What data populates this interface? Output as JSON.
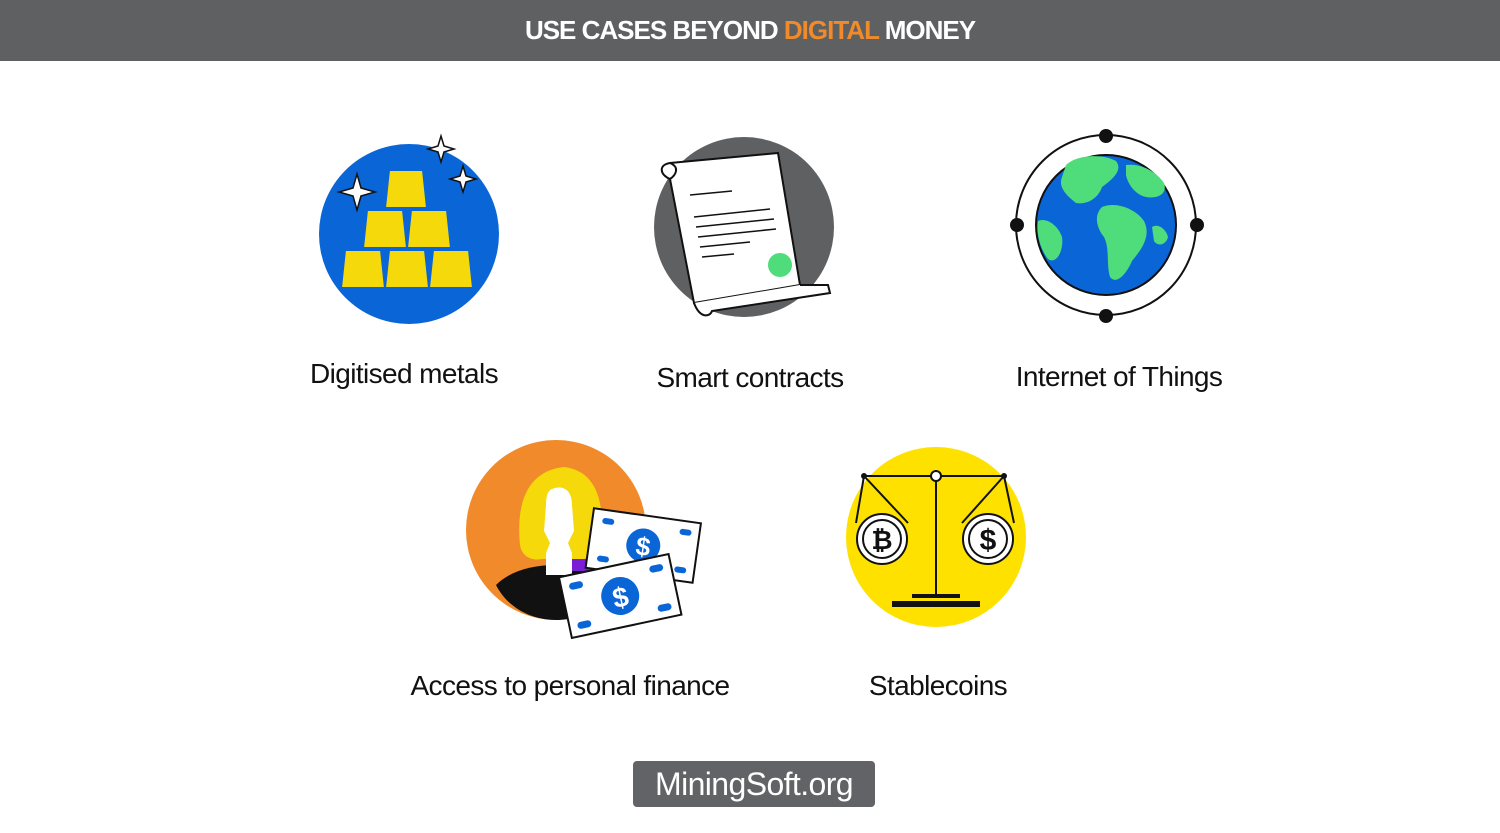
{
  "header": {
    "title_before": "USE CASES BEYOND ",
    "title_accent": "DIGITAL",
    "title_after": " MONEY",
    "accent_color": "#f08a2a",
    "background_color": "#5f6062"
  },
  "use_cases": [
    {
      "label": "Digitised metals",
      "icon": "gold-bars-icon"
    },
    {
      "label": "Smart contracts",
      "icon": "contract-document-icon"
    },
    {
      "label": "Internet of Things",
      "icon": "globe-icon"
    },
    {
      "label": "Access to personal finance",
      "icon": "person-with-money-icon"
    },
    {
      "label": "Stablecoins",
      "icon": "balance-scale-icon"
    }
  ],
  "colors": {
    "blue": "#0a66d6",
    "gold": "#f5d90a",
    "orange": "#f08a2a",
    "green": "#4fdc7a",
    "gray": "#5f6062",
    "yellow": "#ffe100"
  },
  "footer": {
    "brand": "MiningSoft.org"
  }
}
